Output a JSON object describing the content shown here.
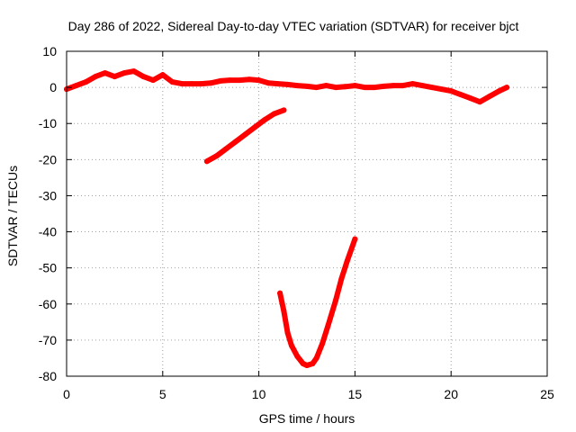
{
  "chart_data": {
    "type": "line",
    "title": "Day 286 of 2022, Sidereal Day-to-day VTEC variation (SDTVAR) for receiver bjct",
    "xlabel": "GPS time / hours",
    "ylabel": "SDTVAR / TECUs",
    "xlim": [
      0,
      25
    ],
    "ylim": [
      -80,
      10
    ],
    "xticks": [
      0,
      5,
      10,
      15,
      20,
      25
    ],
    "yticks": [
      10,
      0,
      -10,
      -20,
      -30,
      -40,
      -50,
      -60,
      -70,
      -80
    ],
    "xtick_labels": [
      "0",
      "5",
      "10",
      "15",
      "20",
      "25"
    ],
    "ytick_labels": [
      "10",
      "0",
      "-10",
      "-20",
      "-30",
      "-40",
      "-50",
      "-60",
      "-70",
      "-80"
    ],
    "grid": true,
    "grid_style": "dotted",
    "color": "#ff0000",
    "series": [
      {
        "x": [
          0.0,
          0.5,
          1.0,
          1.5,
          2.0,
          2.5,
          3.0,
          3.5,
          4.0,
          4.5,
          5.0,
          5.5,
          6.0,
          6.5,
          7.0,
          7.5,
          8.0,
          8.5,
          9.0,
          9.5,
          10.0,
          10.5,
          11.0,
          11.5,
          12.0,
          12.5,
          13.0,
          13.5,
          14.0,
          14.5,
          15.0,
          15.5,
          16.0,
          16.5,
          17.0,
          17.5,
          18.0,
          18.5,
          19.0,
          19.5,
          20.0,
          20.5,
          21.0,
          21.5,
          22.0,
          22.5,
          22.9
        ],
        "y": [
          -0.5,
          0.5,
          1.5,
          3.0,
          4.0,
          3.0,
          4.0,
          4.5,
          3.0,
          2.0,
          3.5,
          1.5,
          1.0,
          1.0,
          1.0,
          1.2,
          1.8,
          2.0,
          2.0,
          2.2,
          2.0,
          1.2,
          1.0,
          0.8,
          0.5,
          0.3,
          0.0,
          0.5,
          0.0,
          0.2,
          0.5,
          0.0,
          0.0,
          0.3,
          0.5,
          0.5,
          1.0,
          0.5,
          0.0,
          -0.5,
          -1.0,
          -2.0,
          -3.0,
          -4.0,
          -2.5,
          -1.0,
          0.0
        ]
      },
      {
        "x": [
          7.3,
          7.8,
          8.3,
          8.8,
          9.3,
          9.8,
          10.3,
          10.8,
          11.3
        ],
        "y": [
          -20.5,
          -19.0,
          -17.0,
          -15.0,
          -13.0,
          -11.0,
          -9.0,
          -7.3,
          -6.3
        ]
      },
      {
        "x": [
          11.1,
          11.3,
          11.5,
          11.7,
          12.0,
          12.3,
          12.5,
          12.8,
          13.0,
          13.3,
          13.6,
          14.0,
          14.3,
          14.6,
          15.0
        ],
        "y": [
          -57.0,
          -62.0,
          -68.0,
          -71.5,
          -74.5,
          -76.5,
          -77.0,
          -76.5,
          -75.0,
          -71.0,
          -66.0,
          -59.0,
          -53.0,
          -48.0,
          -42.0
        ]
      }
    ]
  }
}
